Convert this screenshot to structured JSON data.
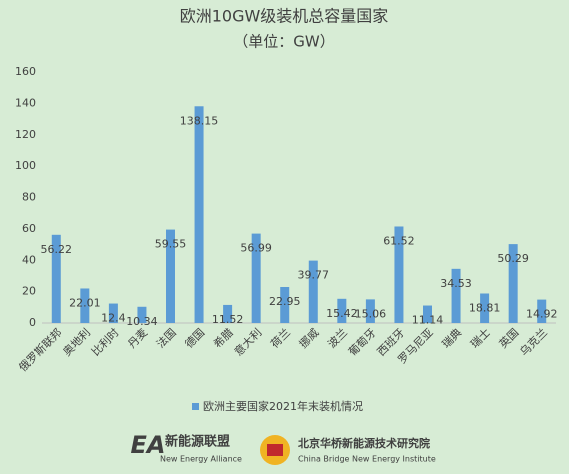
{
  "chart_data": {
    "type": "bar",
    "title": "欧洲10GW级装机总容量国家",
    "subtitle": "（单位：GW）",
    "categories": [
      "俄罗斯联邦",
      "奥地利",
      "比利时",
      "丹麦",
      "法国",
      "德国",
      "希腊",
      "意大利",
      "荷兰",
      "挪威",
      "波兰",
      "葡萄牙",
      "西班牙",
      "罗马尼亚",
      "瑞典",
      "瑞士",
      "英国",
      "乌克兰"
    ],
    "series": [
      {
        "name": "欧洲主要国家2021年末装机情况",
        "color": "#5b9bd5",
        "values": [
          56.22,
          22.01,
          12.4,
          10.34,
          59.55,
          138.15,
          11.52,
          56.99,
          22.95,
          39.77,
          15.42,
          15.06,
          61.52,
          11.14,
          34.53,
          18.81,
          50.29,
          14.92
        ]
      }
    ],
    "ylim": [
      0,
      160
    ],
    "yticks": [
      0,
      20,
      40,
      60,
      80,
      100,
      120,
      140,
      160
    ],
    "grid": false,
    "legend": "bottom"
  },
  "footer": {
    "logo1_cn": "新能源联盟",
    "logo1_en": "New Energy Alliance",
    "logo2_cn": "北京华桥新能源技术研究院",
    "logo2_en": "China Bridge New Energy Institute"
  }
}
